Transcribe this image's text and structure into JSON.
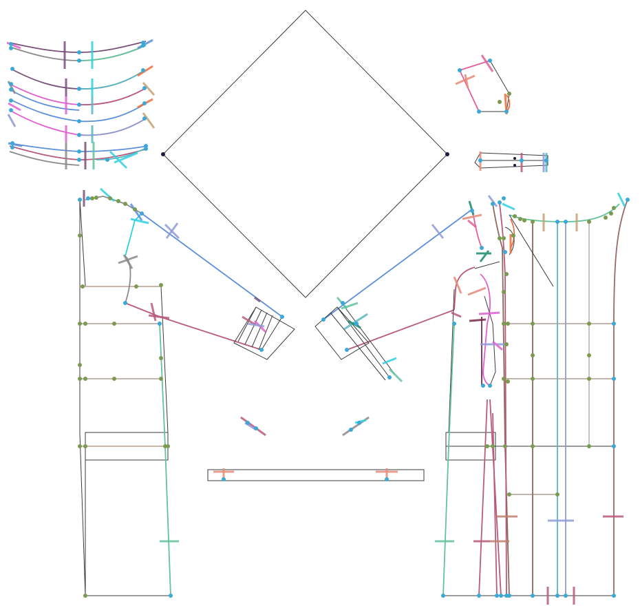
{
  "drawing": {
    "background": "#ffffff",
    "palette": {
      "outline": "#3a3a3a",
      "blue": "#5b8fd8",
      "rose": "#b85a7a",
      "green": "#62c29a",
      "brown": "#8a6a5a",
      "lilac": "#8f9bd6",
      "teal": "#58b7c2",
      "cyan": "#2fd0e0",
      "pink": "#e05fd0",
      "purple": "#7a4f7a",
      "salmon": "#e58a7a",
      "orange": "#e87040",
      "gray": "#8a8a8a",
      "olive": "#7a9a50",
      "node": "#3aa8d8",
      "pivot": "#1a1a40"
    },
    "pieces": [
      "curved-strips",
      "diamond-panel",
      "collar-piece",
      "tab-piece",
      "left-front-panel",
      "left-sleeve",
      "right-sleeve",
      "right-back-panel",
      "waistband-strip",
      "small-notch-left",
      "small-notch-right"
    ]
  }
}
